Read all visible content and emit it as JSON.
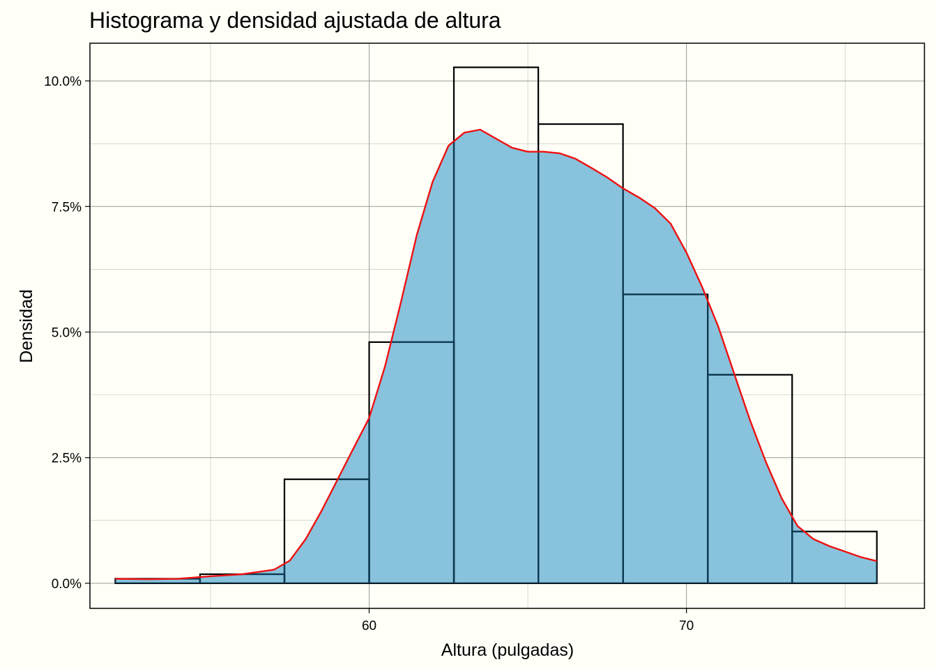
{
  "chart_data": {
    "type": "bar",
    "title": "Histograma y densidad ajustada de altura",
    "xlabel": "Altura (pulgadas)",
    "ylabel": "Densidad",
    "xlim": [
      51.2,
      77.5
    ],
    "ylim": [
      -0.005,
      0.1075
    ],
    "x_ticks": [
      {
        "value": 60,
        "label": "60"
      },
      {
        "value": 70,
        "label": "70"
      }
    ],
    "x_minor_ticks": [
      55,
      65,
      75
    ],
    "y_ticks": [
      {
        "value": 0.0,
        "label": "0.0%"
      },
      {
        "value": 0.025,
        "label": "2.5%"
      },
      {
        "value": 0.05,
        "label": "5.0%"
      },
      {
        "value": 0.075,
        "label": "7.5%"
      },
      {
        "value": 0.1,
        "label": "10.0%"
      }
    ],
    "y_minor_ticks": [
      0.0125,
      0.0375,
      0.0625,
      0.0875
    ],
    "grid": true,
    "bins": [
      {
        "x0": 52.0,
        "x1": 54.67,
        "density": 0.0009
      },
      {
        "x0": 54.67,
        "x1": 57.33,
        "density": 0.0018
      },
      {
        "x0": 57.33,
        "x1": 60.0,
        "density": 0.0207
      },
      {
        "x0": 60.0,
        "x1": 62.67,
        "density": 0.048
      },
      {
        "x0": 62.67,
        "x1": 65.33,
        "density": 0.1027
      },
      {
        "x0": 65.33,
        "x1": 68.0,
        "density": 0.0914
      },
      {
        "x0": 68.0,
        "x1": 70.67,
        "density": 0.0575
      },
      {
        "x0": 70.67,
        "x1": 73.33,
        "density": 0.0415
      },
      {
        "x0": 73.33,
        "x1": 76.0,
        "density": 0.0103
      }
    ],
    "density_curve": {
      "x": [
        52.0,
        53.0,
        54.0,
        55.0,
        56.0,
        57.0,
        57.5,
        58.0,
        58.5,
        59.0,
        59.5,
        60.0,
        60.5,
        61.0,
        61.5,
        62.0,
        62.5,
        63.0,
        63.5,
        64.0,
        64.5,
        65.0,
        65.5,
        66.0,
        66.5,
        67.0,
        67.5,
        68.0,
        68.5,
        69.0,
        69.5,
        70.0,
        70.5,
        71.0,
        71.5,
        72.0,
        72.5,
        73.0,
        73.5,
        74.0,
        74.5,
        75.0,
        75.5,
        76.0
      ],
      "y": [
        0.0009,
        0.0008,
        0.0009,
        0.0014,
        0.0018,
        0.0027,
        0.0045,
        0.0088,
        0.0144,
        0.0206,
        0.0268,
        0.0329,
        0.0432,
        0.0559,
        0.0693,
        0.0799,
        0.0871,
        0.0897,
        0.0903,
        0.0885,
        0.0867,
        0.0859,
        0.0859,
        0.0856,
        0.0845,
        0.0827,
        0.0808,
        0.0786,
        0.0768,
        0.0747,
        0.0716,
        0.0658,
        0.0589,
        0.0511,
        0.0418,
        0.0325,
        0.0242,
        0.0169,
        0.0114,
        0.0088,
        0.0074,
        0.0063,
        0.0052,
        0.0044
      ]
    },
    "colors": {
      "fill": "#89C2DC",
      "bin_outline": "#000000",
      "bin_inner_line": "#0B3A54",
      "curve": "#EE1111",
      "background": "#FFFFF7",
      "grid": "#BEBEBE"
    }
  }
}
